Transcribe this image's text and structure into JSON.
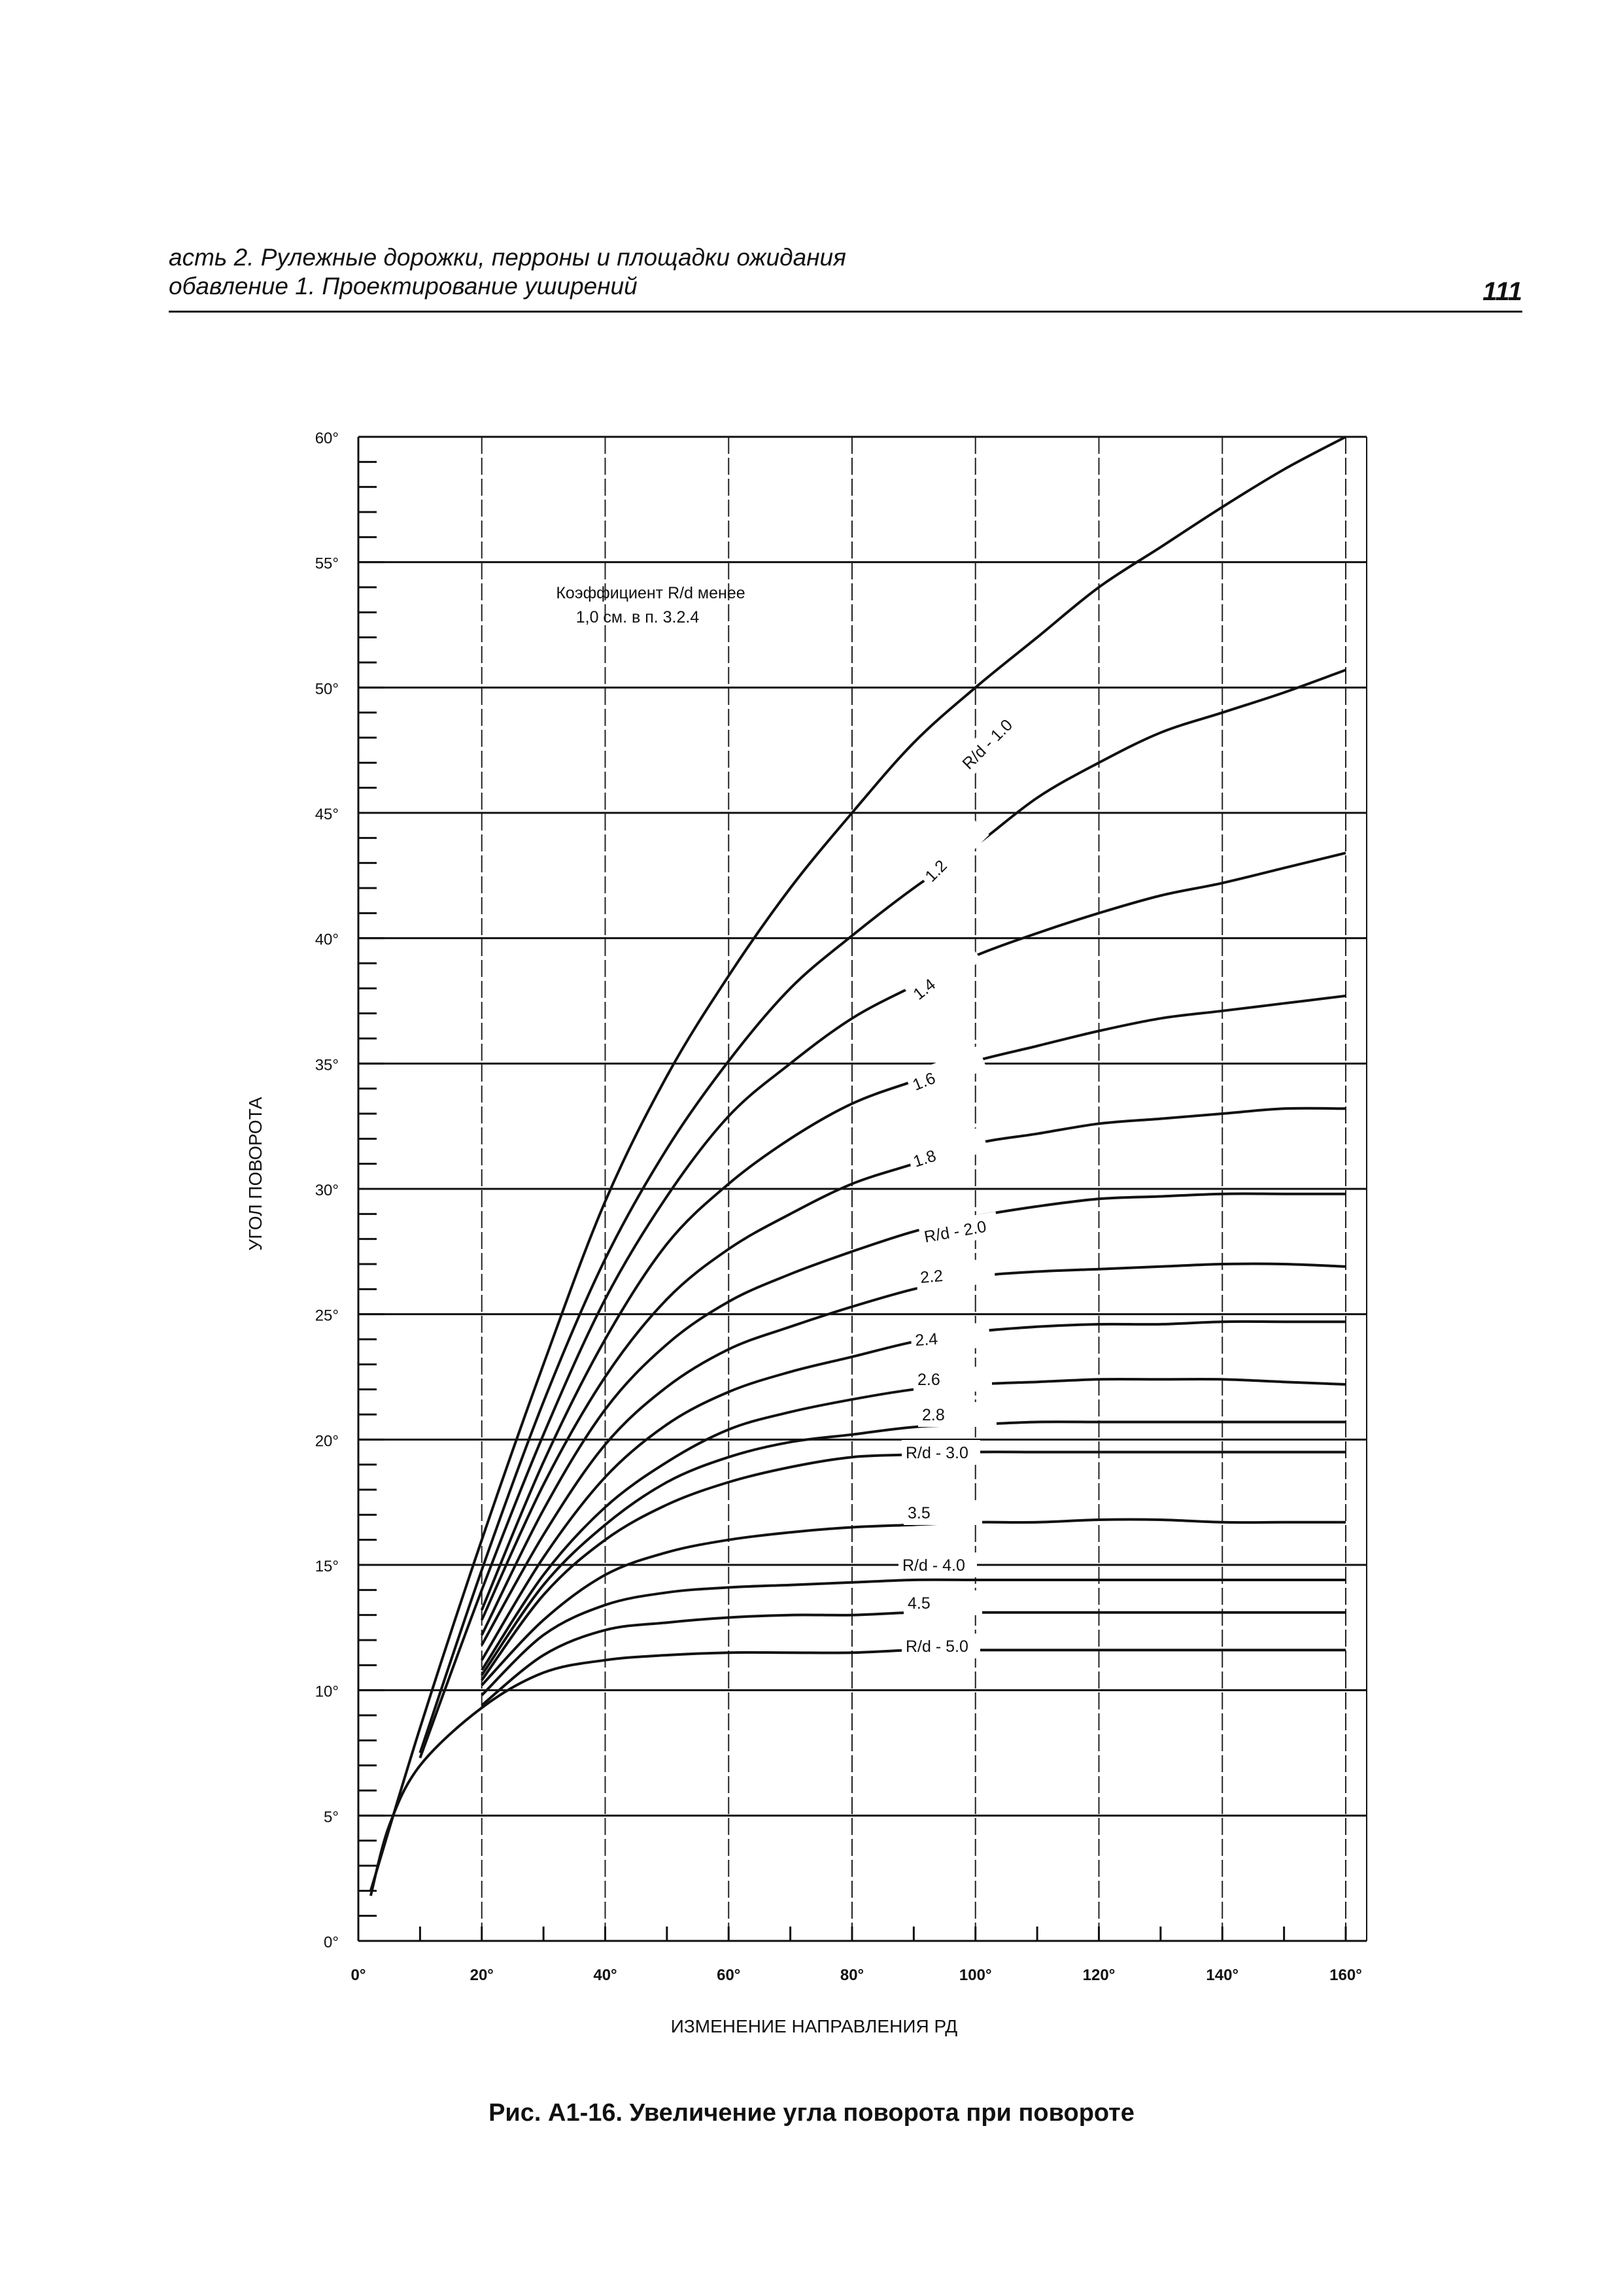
{
  "header": {
    "line1": "асть 2. Рулежные дорожки, перроны и площадки ожидания",
    "line2": "обавление 1. Проектирование уширений",
    "page_number": "111"
  },
  "caption": "Рис. А1-16. Увеличение угла поворота при повороте",
  "chart_data": {
    "type": "line",
    "xlabel": "ИЗМЕНЕНИЕ НАПРАВЛЕНИЯ РД",
    "ylabel": "УГОЛ ПОВОРОТА",
    "xlim": [
      0,
      160
    ],
    "ylim": [
      0,
      60
    ],
    "x_ticks": [
      "0°",
      "20°",
      "40°",
      "60°",
      "80°",
      "100°",
      "120°",
      "140°",
      "160°"
    ],
    "y_ticks": [
      "0°",
      "5°",
      "10°",
      "15°",
      "20°",
      "25°",
      "30°",
      "35°",
      "40°",
      "45°",
      "50°",
      "55°",
      "60°"
    ],
    "grid": "horizontal lines every 5°, dashed vertical lines every 20°",
    "annotation": "Коэффициент R/d менее 1,0 см. в п. 3.2.4",
    "series": [
      {
        "name": "R/d - 1.0",
        "x": [
          2,
          10,
          20,
          30,
          40,
          50,
          60,
          70,
          80,
          90,
          100,
          110,
          120,
          130,
          140,
          150,
          160
        ],
        "y": [
          2,
          8.5,
          16,
          23,
          29.5,
          34.5,
          38.5,
          42,
          45,
          47.8,
          50,
          52,
          54,
          55.6,
          57.2,
          58.7,
          60
        ]
      },
      {
        "name": "1.2",
        "x": [
          10,
          20,
          30,
          40,
          50,
          60,
          70,
          80,
          90,
          100,
          110,
          120,
          130,
          140,
          150,
          160
        ],
        "y": [
          7.5,
          14.8,
          21.5,
          27.2,
          31.6,
          35.1,
          38,
          40.1,
          42,
          43.7,
          45.6,
          47,
          48.2,
          49,
          49.8,
          50.7
        ]
      },
      {
        "name": "1.4",
        "x": [
          10,
          20,
          30,
          40,
          50,
          60,
          70,
          80,
          90,
          100,
          110,
          120,
          130,
          140,
          150,
          160
        ],
        "y": [
          7.3,
          14,
          20.2,
          25.6,
          29.7,
          32.9,
          35,
          36.8,
          38.1,
          39.3,
          40.2,
          41,
          41.7,
          42.2,
          42.8,
          43.4
        ]
      },
      {
        "name": "1.6",
        "x": [
          20,
          30,
          40,
          50,
          60,
          70,
          80,
          90,
          100,
          110,
          120,
          130,
          140,
          150,
          160
        ],
        "y": [
          13.2,
          19.1,
          24,
          27.8,
          30.2,
          32,
          33.4,
          34.3,
          35.1,
          35.7,
          36.3,
          36.8,
          37.1,
          37.4,
          37.7
        ]
      },
      {
        "name": "1.8",
        "x": [
          20,
          30,
          40,
          50,
          60,
          70,
          80,
          90,
          100,
          110,
          120,
          130,
          140,
          150,
          160
        ],
        "y": [
          12.8,
          18.2,
          22.5,
          25.6,
          27.6,
          29,
          30.2,
          31,
          31.8,
          32.2,
          32.6,
          32.8,
          33,
          33.2,
          33.2
        ]
      },
      {
        "name": "R/d - 2.0",
        "x": [
          20,
          30,
          40,
          50,
          60,
          70,
          80,
          90,
          100,
          110,
          120,
          130,
          140,
          150,
          160
        ],
        "y": [
          12.2,
          17.2,
          21.2,
          23.8,
          25.5,
          26.6,
          27.5,
          28.3,
          28.9,
          29.3,
          29.6,
          29.7,
          29.8,
          29.8,
          29.8
        ]
      },
      {
        "name": "2.2",
        "x": [
          20,
          30,
          40,
          50,
          60,
          70,
          80,
          90,
          100,
          110,
          120,
          130,
          140,
          150,
          160
        ],
        "y": [
          11.8,
          16.2,
          19.8,
          22.1,
          23.6,
          24.5,
          25.3,
          26,
          26.5,
          26.7,
          26.8,
          26.9,
          27,
          27,
          26.9
        ]
      },
      {
        "name": "2.4",
        "x": [
          20,
          30,
          40,
          50,
          60,
          70,
          80,
          90,
          100,
          110,
          120,
          130,
          140,
          150,
          160
        ],
        "y": [
          11.2,
          15.3,
          18.5,
          20.6,
          21.9,
          22.7,
          23.3,
          23.9,
          24.3,
          24.5,
          24.6,
          24.6,
          24.7,
          24.7,
          24.7
        ]
      },
      {
        "name": "2.6",
        "x": [
          20,
          30,
          40,
          50,
          60,
          70,
          80,
          90,
          100,
          110,
          120,
          130,
          140,
          150,
          160
        ],
        "y": [
          10.8,
          14.6,
          17.3,
          19.1,
          20.4,
          21.1,
          21.6,
          22,
          22.2,
          22.3,
          22.4,
          22.4,
          22.4,
          22.3,
          22.2
        ]
      },
      {
        "name": "2.8",
        "x": [
          20,
          30,
          40,
          50,
          60,
          70,
          80,
          90,
          100,
          110,
          120,
          130,
          140,
          150,
          160
        ],
        "y": [
          10.6,
          14.2,
          16.6,
          18.3,
          19.3,
          19.9,
          20.2,
          20.5,
          20.6,
          20.7,
          20.7,
          20.7,
          20.7,
          20.7,
          20.7
        ]
      },
      {
        "name": "R/d - 3.0",
        "x": [
          20,
          30,
          40,
          50,
          60,
          70,
          80,
          90,
          100,
          110,
          120,
          130,
          140,
          150,
          160
        ],
        "y": [
          10.4,
          13.8,
          16,
          17.4,
          18.3,
          18.9,
          19.3,
          19.4,
          19.5,
          19.5,
          19.5,
          19.5,
          19.5,
          19.5,
          19.5
        ]
      },
      {
        "name": "3.5",
        "x": [
          20,
          30,
          40,
          50,
          60,
          70,
          80,
          90,
          100,
          110,
          120,
          130,
          140,
          150,
          160
        ],
        "y": [
          10.2,
          12.8,
          14.6,
          15.5,
          16,
          16.3,
          16.5,
          16.6,
          16.7,
          16.7,
          16.8,
          16.8,
          16.7,
          16.7,
          16.7
        ]
      },
      {
        "name": "R/d - 4.0",
        "x": [
          20,
          30,
          40,
          50,
          60,
          70,
          80,
          90,
          100,
          110,
          120,
          130,
          140,
          150,
          160
        ],
        "y": [
          9.8,
          12.2,
          13.4,
          13.9,
          14.1,
          14.2,
          14.3,
          14.4,
          14.4,
          14.4,
          14.4,
          14.4,
          14.4,
          14.4,
          14.4
        ]
      },
      {
        "name": "4.5",
        "x": [
          20,
          30,
          40,
          50,
          60,
          70,
          80,
          90,
          100,
          110,
          120,
          130,
          140,
          150,
          160
        ],
        "y": [
          9.4,
          11.4,
          12.4,
          12.7,
          12.9,
          13,
          13,
          13.1,
          13.1,
          13.1,
          13.1,
          13.1,
          13.1,
          13.1,
          13.1
        ]
      },
      {
        "name": "R/d - 5.0",
        "x": [
          2,
          5,
          10,
          20,
          30,
          40,
          50,
          60,
          70,
          80,
          90,
          100,
          110,
          120,
          130,
          140,
          150,
          160
        ],
        "y": [
          1.8,
          4.6,
          7,
          9.3,
          10.7,
          11.2,
          11.4,
          11.5,
          11.5,
          11.5,
          11.6,
          11.6,
          11.6,
          11.6,
          11.6,
          11.6,
          11.6,
          11.6
        ]
      }
    ]
  }
}
